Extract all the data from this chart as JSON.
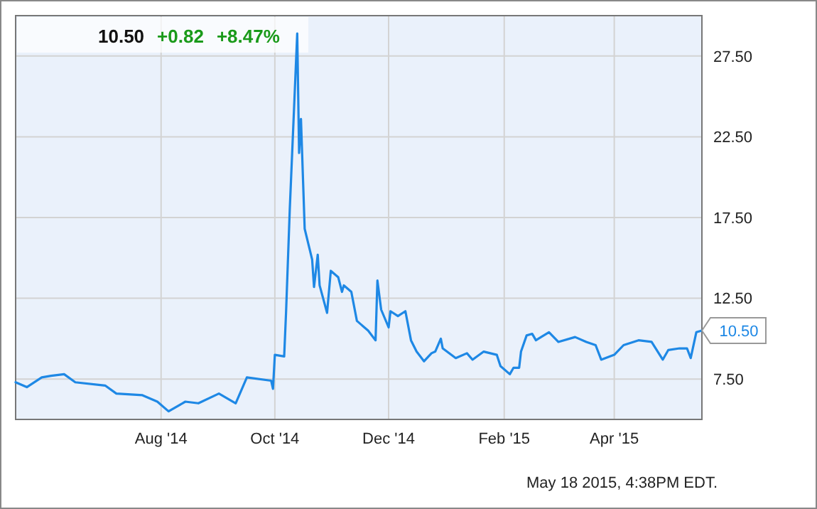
{
  "chart_data": {
    "type": "line",
    "x": [
      "2014-05-15",
      "2014-05-21",
      "2014-05-29",
      "2014-06-03",
      "2014-06-10",
      "2014-06-16",
      "2014-07-02",
      "2014-07-08",
      "2014-07-22",
      "2014-07-30",
      "2014-08-05",
      "2014-08-14",
      "2014-08-21",
      "2014-09-01",
      "2014-09-10",
      "2014-09-16",
      "2014-09-29",
      "2014-09-30",
      "2014-10-01",
      "2014-10-06",
      "2014-10-07",
      "2014-10-09",
      "2014-10-13",
      "2014-10-14",
      "2014-10-15",
      "2014-10-17",
      "2014-10-21",
      "2014-10-22",
      "2014-10-24",
      "2014-10-25",
      "2014-10-29",
      "2014-10-31",
      "2014-11-04",
      "2014-11-06",
      "2014-11-07",
      "2014-11-11",
      "2014-11-14",
      "2014-11-20",
      "2014-11-24",
      "2014-11-25",
      "2014-11-27",
      "2014-12-01",
      "2014-12-02",
      "2014-12-06",
      "2014-12-10",
      "2014-12-13",
      "2014-12-16",
      "2014-12-20",
      "2014-12-24",
      "2014-12-26",
      "2014-12-29",
      "2014-12-30",
      "2015-01-06",
      "2015-01-12",
      "2015-01-15",
      "2015-01-21",
      "2015-01-28",
      "2015-01-30",
      "2015-02-04",
      "2015-02-06",
      "2015-02-09",
      "2015-02-10",
      "2015-02-13",
      "2015-02-16",
      "2015-02-18",
      "2015-02-25",
      "2015-03-02",
      "2015-03-11",
      "2015-03-17",
      "2015-03-22",
      "2015-03-25",
      "2015-04-01",
      "2015-04-06",
      "2015-04-14",
      "2015-04-21",
      "2015-04-27",
      "2015-04-30",
      "2015-05-06",
      "2015-05-10",
      "2015-05-12",
      "2015-05-15",
      "2015-05-18"
    ],
    "series": [
      {
        "color": "#1e88e5",
        "values": [
          7.3,
          7.0,
          7.6,
          7.7,
          7.8,
          7.3,
          7.1,
          6.6,
          6.5,
          6.1,
          5.5,
          6.1,
          6.0,
          6.6,
          6.0,
          7.6,
          7.4,
          6.9,
          9.0,
          8.9,
          11.6,
          18.0,
          28.9,
          21.5,
          23.6,
          16.8,
          14.9,
          13.2,
          15.2,
          13.3,
          11.6,
          14.2,
          13.8,
          12.9,
          13.3,
          12.9,
          11.1,
          10.5,
          9.9,
          13.6,
          11.8,
          10.7,
          11.7,
          11.4,
          11.7,
          9.9,
          9.2,
          8.6,
          9.1,
          9.2,
          10.0,
          9.4,
          8.8,
          9.1,
          8.7,
          9.2,
          9.0,
          8.3,
          7.8,
          8.2,
          8.2,
          9.2,
          10.2,
          10.3,
          9.9,
          10.4,
          9.8,
          10.1,
          9.8,
          9.6,
          8.7,
          9.0,
          9.6,
          9.9,
          9.8,
          8.7,
          9.3,
          9.4,
          9.4,
          8.8,
          10.4,
          10.5
        ]
      }
    ],
    "xlim": [
      "2014-05-15",
      "2015-05-18"
    ],
    "xticks": [
      {
        "value": "2014-08-01",
        "label": "Aug '14"
      },
      {
        "value": "2014-10-01",
        "label": "Oct '14"
      },
      {
        "value": "2014-12-01",
        "label": "Dec '14"
      },
      {
        "value": "2015-02-01",
        "label": "Feb '15"
      },
      {
        "value": "2015-04-01",
        "label": "Apr '15"
      }
    ],
    "ylim": [
      5,
      30
    ],
    "yticks": [
      {
        "value": 7.5,
        "label": "7.50"
      },
      {
        "value": 12.5,
        "label": "12.50"
      },
      {
        "value": 17.5,
        "label": "17.50"
      },
      {
        "value": 22.5,
        "label": "22.50"
      },
      {
        "value": 27.5,
        "label": "27.50"
      }
    ],
    "grid": true,
    "marker": "none",
    "line_style": "solid",
    "annotations": [
      "10.50",
      "+0.82",
      "+8.47%",
      {
        "text": "10.50",
        "x": "2015-05-18",
        "y": 10.5
      },
      "May 18 2015, 4:38PM EDT."
    ]
  }
}
